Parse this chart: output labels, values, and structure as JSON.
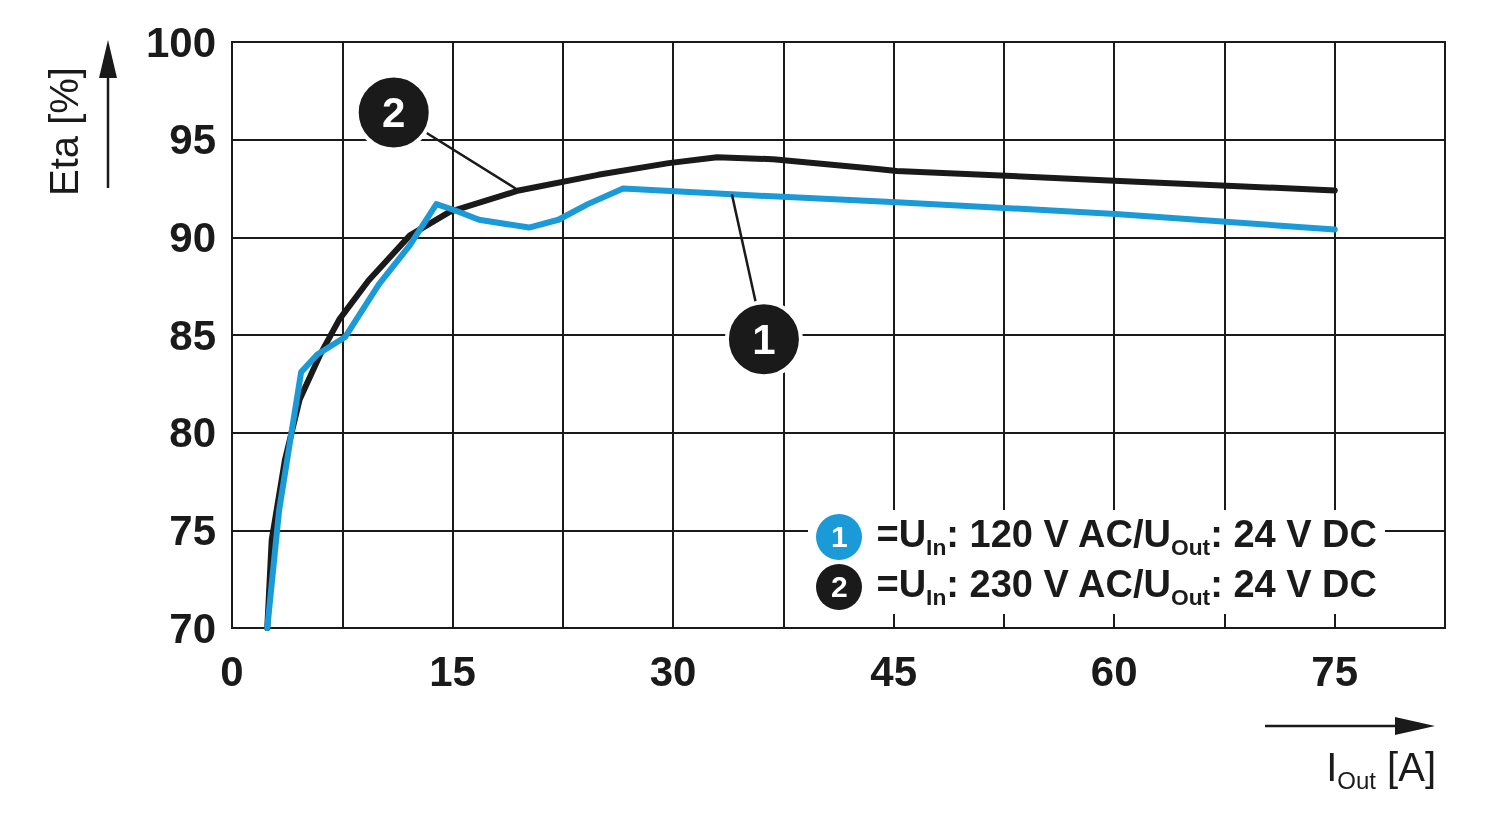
{
  "chart_data": {
    "type": "line",
    "xlabel": "I$_{Out}$ [A]",
    "ylabel": "Eta [%]",
    "xlim": [
      0,
      82.5
    ],
    "xticks": [
      0,
      {
        "value": 7.5,
        "label": null
      },
      15,
      {
        "value": 22.5,
        "label": null
      },
      30,
      {
        "value": 37.5,
        "label": null
      },
      45,
      {
        "value": 52.5,
        "label": null
      },
      60,
      {
        "value": 67.5,
        "label": null
      },
      75
    ],
    "ylim": [
      70,
      100
    ],
    "yticks": [
      70,
      75,
      80,
      85,
      90,
      95,
      100
    ],
    "grid": true,
    "legend": "bottom right",
    "marker": "none",
    "line_style": "solid",
    "series": [
      {
        "name": "=U$_{In}$: 120 V AC/U$_{Out}$: 24 V DC",
        "color": "#1a9ad6",
        "x": [
          2.4,
          3.2,
          4.7,
          5.8,
          7.7,
          10,
          12.1,
          13.9,
          15.1,
          16.8,
          20.2,
          22.2,
          24.2,
          26.6,
          34,
          45.2,
          60.1,
          75
        ],
        "values": [
          70,
          76.0,
          83.1,
          84.0,
          84.9,
          87.6,
          89.6,
          91.7,
          91.4,
          90.9,
          90.5,
          90.9,
          91.7,
          92.5,
          92.2,
          91.8,
          91.2,
          90.4
        ]
      },
      {
        "name": "=U$_{In}$: 230 V AC/U$_{Out}$: 24 V DC",
        "color": "#1a1a1a",
        "x": [
          2.4,
          2.7,
          3.6,
          4.6,
          6,
          7.3,
          9.3,
          12.1,
          14.8,
          19.5,
          24.9,
          29.7,
          33,
          36.8,
          43.9,
          45.2,
          60,
          75
        ],
        "values": [
          70,
          74.5,
          78.6,
          81.7,
          84,
          85.8,
          87.8,
          90.1,
          91.3,
          92.4,
          93.2,
          93.8,
          94.1,
          94.0,
          93.5,
          93.4,
          92.9,
          92.4
        ]
      }
    ],
    "annotations": [
      {
        "text": "1",
        "x": 34,
        "y": 92.2
      },
      {
        "text": "2",
        "x": 19.5,
        "y": 92.4
      }
    ]
  }
}
